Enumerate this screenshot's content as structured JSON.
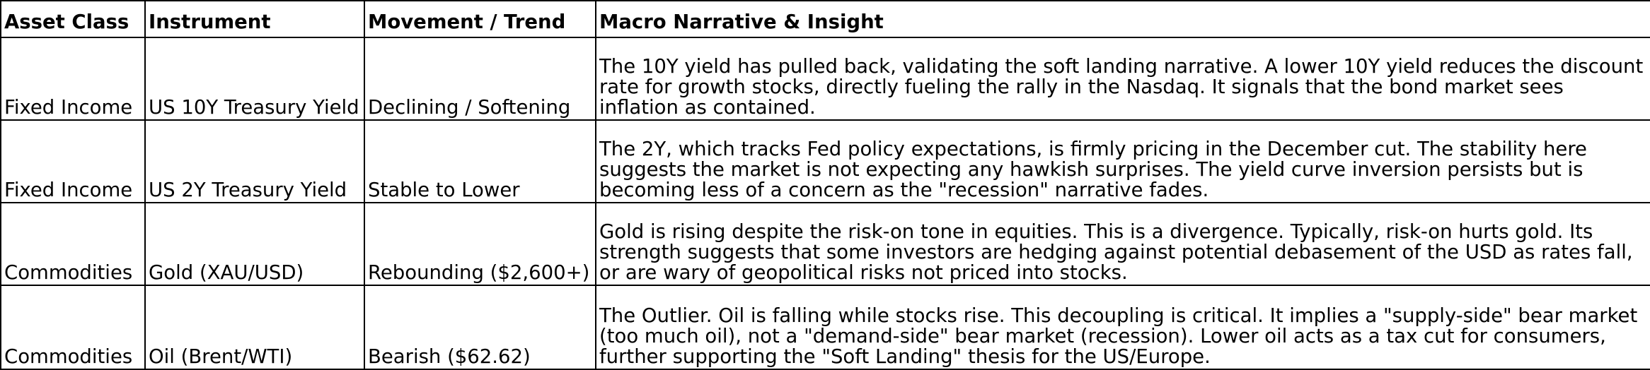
{
  "table": {
    "headers": [
      "Asset Class",
      "Instrument",
      "Movement / Trend",
      "Macro Narrative & Insight"
    ],
    "rows": [
      {
        "asset_class": "Fixed Income",
        "instrument": "US 10Y Treasury Yield",
        "movement": "Declining / Softening",
        "narrative": "The 10Y yield has pulled back, validating the soft landing narrative. A lower 10Y yield reduces the discount rate for growth stocks, directly fueling the rally in the Nasdaq. It signals that the bond market sees inflation as contained."
      },
      {
        "asset_class": "Fixed Income",
        "instrument": "US 2Y Treasury Yield",
        "movement": "Stable to Lower",
        "narrative": "The 2Y, which tracks Fed policy expectations, is firmly pricing in the December cut. The stability here suggests the market is not expecting any hawkish surprises. The yield curve inversion persists but is becoming less of a concern as the \"recession\" narrative fades."
      },
      {
        "asset_class": "Commodities",
        "instrument": "Gold (XAU/USD)",
        "movement": "Rebounding ($2,600+)",
        "narrative": "Gold is rising despite the risk-on tone in equities. This is a divergence. Typically, risk-on hurts gold. Its strength suggests that some investors are hedging against potential debasement of the USD as rates fall, or are wary of geopolitical risks not priced into stocks."
      },
      {
        "asset_class": "Commodities",
        "instrument": "Oil (Brent/WTI)",
        "movement": "Bearish ($62.62)",
        "narrative": "The Outlier. Oil is falling while stocks rise. This decoupling is critical. It implies a \"supply-side\" bear market (too much oil), not a \"demand-side\" bear market (recession). Lower oil acts as a tax cut for consumers, further supporting the \"Soft Landing\" thesis for the US/Europe."
      }
    ]
  }
}
